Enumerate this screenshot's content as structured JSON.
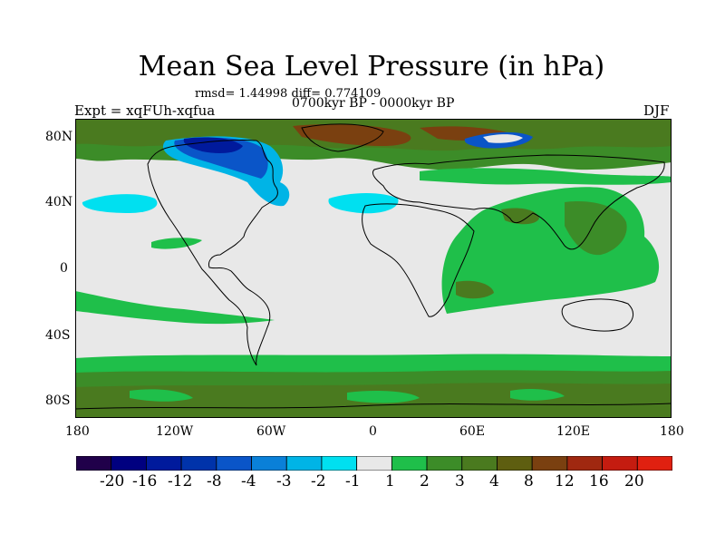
{
  "title": "Mean Sea Level Pressure (in hPa)",
  "stats_line": "rmsd= 1.44998 diff= 0.774109",
  "period": "0700kyr BP - 0000kyr BP",
  "experiment": "Expt = xqFUh-xqfua",
  "season": "DJF",
  "y_ticks": [
    "80N",
    "40N",
    "0",
    "40S",
    "80S"
  ],
  "x_ticks": [
    "180",
    "120W",
    "60W",
    "0",
    "60E",
    "120E",
    "180"
  ],
  "colorbar": {
    "labels": [
      "-20",
      "-16",
      "-12",
      "-8",
      "-4",
      "-3",
      "-2",
      "-1",
      "1",
      "2",
      "3",
      "4",
      "8",
      "12",
      "16",
      "20"
    ],
    "colors": [
      "#20004a",
      "#000080",
      "#001a9c",
      "#0033aa",
      "#0a55c8",
      "#0a80d8",
      "#00b4e6",
      "#00e0f0",
      "#e8e8e8",
      "#1fbf4a",
      "#3c8c28",
      "#4a7a1f",
      "#5e5e10",
      "#7a4010",
      "#a02810",
      "#c41c10",
      "#e02010"
    ]
  },
  "palette": {
    "neutral": "#e8e8e8",
    "green": "#1fbf4a",
    "darkgreen": "#3c8c28",
    "olive": "#4a7a1f",
    "brown": "#7a4010",
    "lightblue": "#00e0f0",
    "blue": "#0a55c8",
    "darkblue": "#001a9c"
  }
}
